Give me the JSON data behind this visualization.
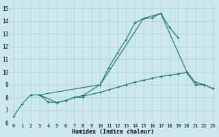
{
  "xlabel": "Humidex (Indice chaleur)",
  "bg_color": "#cce8ec",
  "grid_color": "#a8cfd5",
  "line_color": "#1e7870",
  "xlim": [
    -0.5,
    23.5
  ],
  "ylim": [
    6,
    15.5
  ],
  "xticks": [
    0,
    1,
    2,
    3,
    4,
    5,
    6,
    7,
    8,
    9,
    10,
    11,
    12,
    13,
    14,
    15,
    16,
    17,
    18,
    19,
    20,
    21,
    22,
    23
  ],
  "yticks": [
    6,
    7,
    8,
    9,
    10,
    11,
    12,
    13,
    14,
    15
  ],
  "series": [
    {
      "x": [
        0,
        1,
        2,
        3,
        4,
        5,
        6,
        7,
        8
      ],
      "y": [
        6.5,
        7.5,
        8.2,
        8.2,
        7.65,
        7.6,
        7.75,
        8.0,
        8.0
      ]
    },
    {
      "x": [
        3,
        5,
        6,
        7,
        8,
        10,
        11,
        12,
        13,
        14,
        15,
        16,
        17,
        18,
        19
      ],
      "y": [
        8.2,
        7.6,
        7.75,
        8.0,
        8.15,
        9.0,
        10.35,
        11.5,
        12.55,
        13.85,
        14.2,
        14.25,
        14.6,
        13.5,
        12.7
      ]
    },
    {
      "x": [
        3,
        10,
        15,
        17,
        20,
        21,
        22,
        23
      ],
      "y": [
        8.2,
        9.0,
        14.2,
        14.6,
        10.0,
        9.2,
        9.0,
        8.7
      ]
    },
    {
      "x": [
        8,
        10,
        11,
        12,
        13,
        14,
        15,
        16,
        17,
        18,
        19,
        20,
        21,
        22,
        23
      ],
      "y": [
        8.1,
        8.4,
        8.6,
        8.8,
        9.0,
        9.2,
        9.35,
        9.5,
        9.65,
        9.75,
        9.85,
        9.95,
        9.0,
        9.0,
        8.7
      ]
    }
  ]
}
